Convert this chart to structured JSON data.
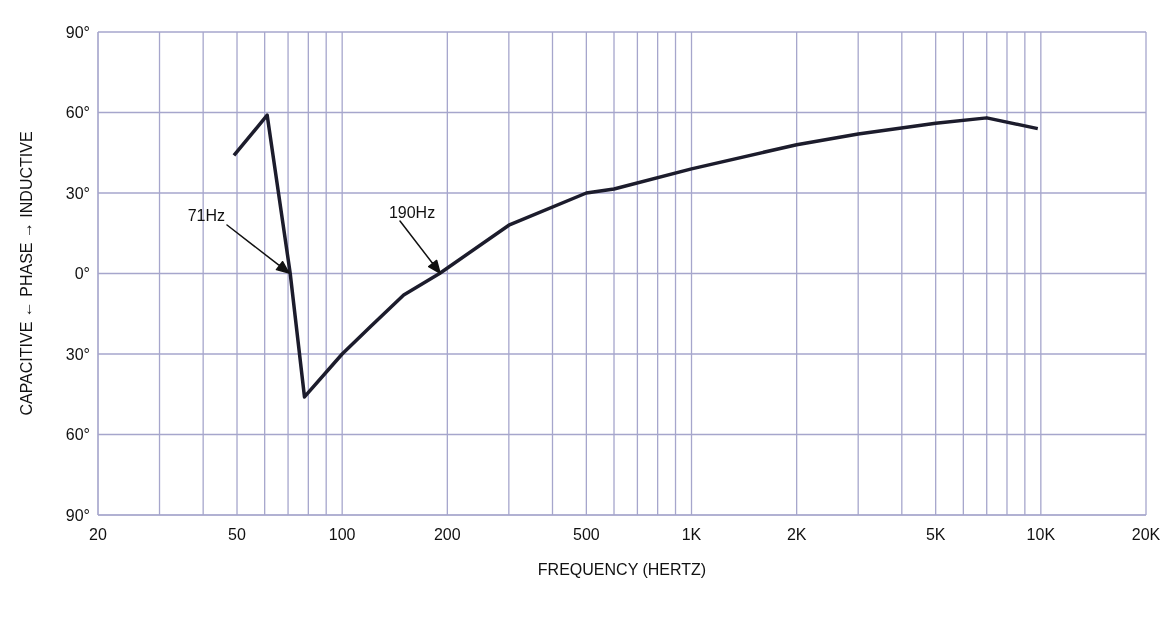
{
  "chart_data": {
    "type": "line",
    "xlabel": "FREQUENCY (HERTZ)",
    "ylabel": "CAPACITIVE ← PHASE → INDUCTIVE",
    "log": "x",
    "grid": true,
    "marker": "none",
    "x": [
      49,
      61,
      71,
      78,
      100,
      120,
      150,
      190,
      300,
      500,
      600,
      1000,
      2000,
      3000,
      5000,
      7000,
      9800
    ],
    "series": [
      {
        "color": "#1c1c2c",
        "values": [
          44,
          59,
          0,
          -46,
          -30,
          -20,
          -8,
          0,
          18,
          30,
          31.5,
          39,
          48,
          52,
          56,
          58,
          54
        ]
      }
    ],
    "xlim": [
      20,
      20000
    ],
    "xticks": [
      20,
      {
        "value": 30,
        "label": null
      },
      {
        "value": 40,
        "label": null
      },
      50,
      {
        "value": 60,
        "label": null
      },
      {
        "value": 70,
        "label": null
      },
      {
        "value": 80,
        "label": null
      },
      {
        "value": 90,
        "label": null
      },
      100,
      200,
      {
        "value": 300,
        "label": null
      },
      {
        "value": 400,
        "label": null
      },
      500,
      {
        "value": 600,
        "label": null
      },
      {
        "value": 700,
        "label": null
      },
      {
        "value": 800,
        "label": null
      },
      {
        "value": 900,
        "label": null
      },
      {
        "value": 1000,
        "label": "1K"
      },
      {
        "value": 2000,
        "label": "2K"
      },
      {
        "value": 3000,
        "label": null
      },
      {
        "value": 4000,
        "label": null
      },
      {
        "value": 5000,
        "label": "5K"
      },
      {
        "value": 6000,
        "label": null
      },
      {
        "value": 7000,
        "label": null
      },
      {
        "value": 8000,
        "label": null
      },
      {
        "value": 9000,
        "label": null
      },
      {
        "value": 10000,
        "label": "10K"
      },
      {
        "value": 20000,
        "label": "20K"
      }
    ],
    "ylim": [
      -90,
      90
    ],
    "yticks": [
      {
        "value": -90,
        "label": "90°"
      },
      {
        "value": -60,
        "label": "60°"
      },
      {
        "value": -30,
        "label": "30°"
      },
      {
        "value": 0,
        "label": "0°"
      },
      {
        "value": 30,
        "label": "30°"
      },
      {
        "value": 60,
        "label": "60°"
      },
      {
        "value": 90,
        "label": "90°"
      }
    ],
    "annotations": [
      "71Hz",
      "190Hz"
    ]
  }
}
